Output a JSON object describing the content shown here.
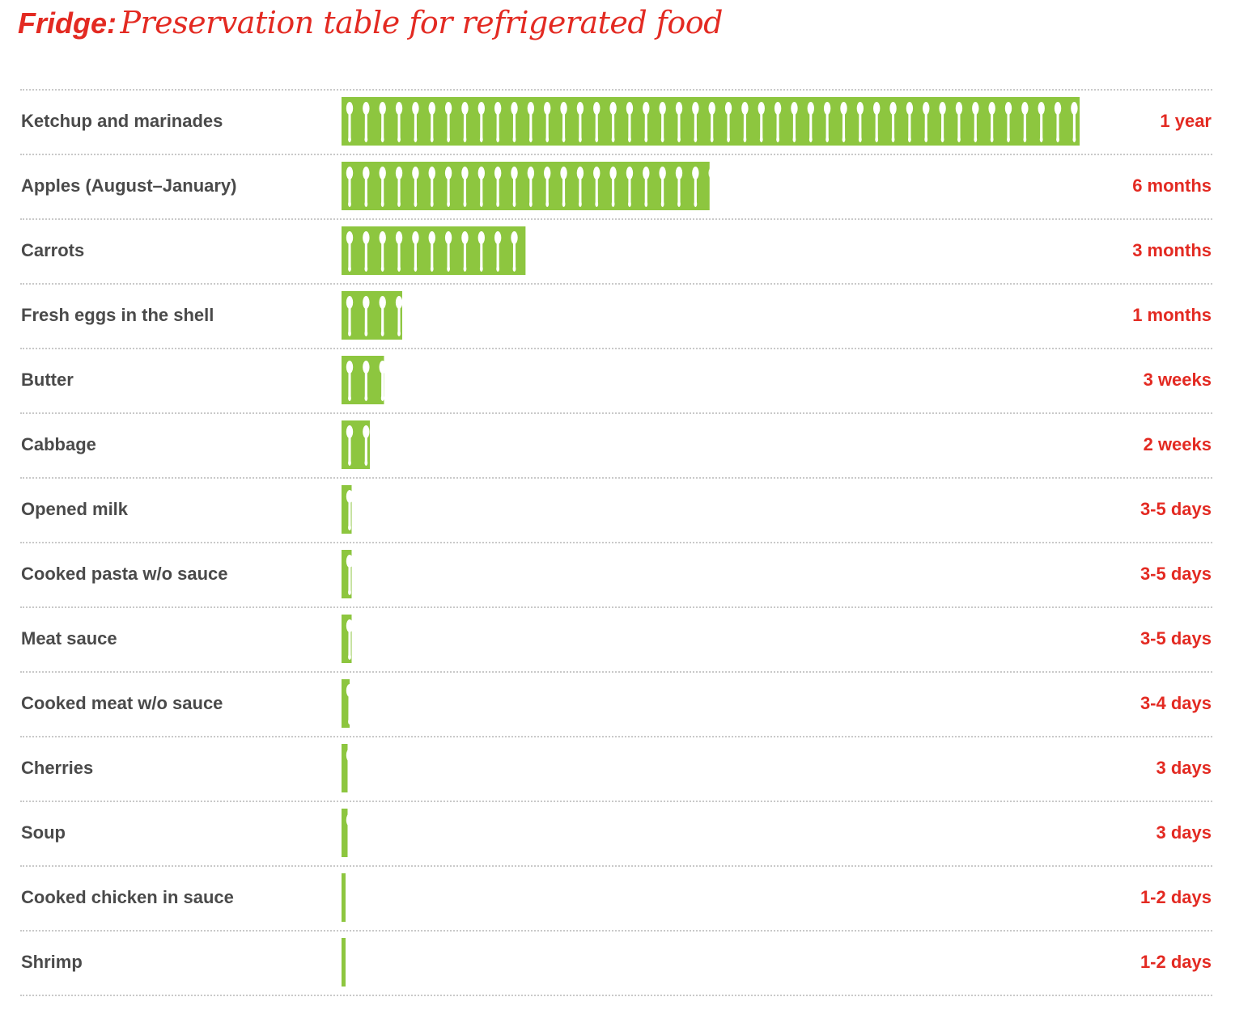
{
  "title": {
    "lead": "Fridge:",
    "rest": "Preservation table for refrigerated food"
  },
  "colors": {
    "bar": "#8dc63f",
    "accent": "#e32a22",
    "label": "#4a4a4a",
    "rule": "#c9c9c9"
  },
  "icon": "spoon-icon",
  "chart_data": {
    "type": "bar",
    "orientation": "horizontal",
    "unit": "days",
    "categories": [
      "Ketchup and marinades",
      "Apples (August–January)",
      "Carrots",
      "Fresh eggs in the shell",
      "Butter",
      "Cabbage",
      "Opened milk",
      "Cooked pasta w/o sauce",
      "Meat sauce",
      "Cooked meat w/o sauce",
      "Cherries",
      "Soup",
      "Cooked chicken in sauce",
      "Shrimp"
    ],
    "labels": [
      "1 year",
      "6 months",
      "3 months",
      "1 months",
      "3 weeks",
      "2 weeks",
      "3-5 days",
      "3-5 days",
      "3-5 days",
      "3-4 days",
      "3 days",
      "3 days",
      "1-2 days",
      "1-2 days"
    ],
    "values": [
      365,
      182,
      91,
      30,
      21,
      14,
      5,
      5,
      5,
      4,
      3,
      3,
      2,
      2
    ],
    "xlim": [
      0,
      365
    ]
  }
}
